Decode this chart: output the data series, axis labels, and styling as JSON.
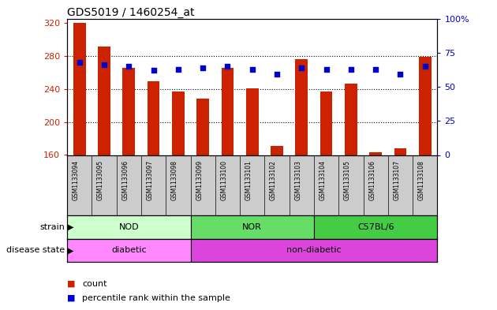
{
  "title": "GDS5019 / 1460254_at",
  "samples": [
    "GSM1133094",
    "GSM1133095",
    "GSM1133096",
    "GSM1133097",
    "GSM1133098",
    "GSM1133099",
    "GSM1133100",
    "GSM1133101",
    "GSM1133102",
    "GSM1133103",
    "GSM1133104",
    "GSM1133105",
    "GSM1133106",
    "GSM1133107",
    "GSM1133108"
  ],
  "counts": [
    320,
    291,
    265,
    249,
    237,
    228,
    265,
    241,
    171,
    276,
    237,
    246,
    163,
    168,
    279
  ],
  "percentiles": [
    68,
    66,
    65,
    62,
    63,
    64,
    65,
    63,
    59,
    64,
    63,
    63,
    63,
    59,
    65
  ],
  "ylim_left": [
    160,
    325
  ],
  "ylim_right": [
    0,
    100
  ],
  "yticks_left": [
    160,
    200,
    240,
    280,
    320
  ],
  "yticks_right": [
    0,
    25,
    50,
    75,
    100
  ],
  "bar_color": "#cc2200",
  "dot_color": "#0000cc",
  "strains": [
    {
      "label": "NOD",
      "start": 0,
      "end": 5,
      "color": "#ccffcc"
    },
    {
      "label": "NOR",
      "start": 5,
      "end": 10,
      "color": "#66dd66"
    },
    {
      "label": "C57BL/6",
      "start": 10,
      "end": 15,
      "color": "#44cc44"
    }
  ],
  "disease_states": [
    {
      "label": "diabetic",
      "start": 0,
      "end": 5,
      "color": "#ff88ff"
    },
    {
      "label": "non-diabetic",
      "start": 5,
      "end": 15,
      "color": "#dd44dd"
    }
  ],
  "strain_label": "strain",
  "disease_label": "disease state",
  "legend_count": "count",
  "legend_percentile": "percentile rank within the sample",
  "background_color": "#ffffff",
  "plot_bg": "#ffffff",
  "tick_label_color_left": "#cc2200",
  "tick_label_color_right": "#0000cc",
  "xtick_bg": "#cccccc",
  "grid_yticks": [
    200,
    240,
    280
  ]
}
